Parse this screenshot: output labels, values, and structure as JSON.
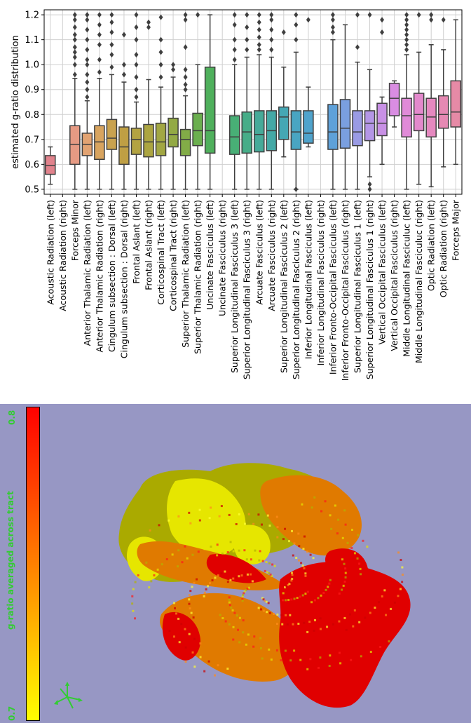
{
  "chart_data": {
    "type": "boxplot",
    "ylabel": "estimated g-ratio distribution",
    "xlabel": "",
    "ylim": [
      0.48,
      1.22
    ],
    "yticks": [
      0.5,
      0.6,
      0.7,
      0.8,
      0.9,
      1.0,
      1.1,
      1.2
    ],
    "grid": true,
    "categories": [
      {
        "label": "Acoustic Radiation (left)",
        "color": "#e1828c",
        "box": {
          "min": 0.52,
          "q1": 0.56,
          "median": 0.595,
          "q3": 0.635,
          "max": 0.67
        },
        "outliers": []
      },
      {
        "label": "Acoustic Radiation (right)",
        "color": "#e1828c",
        "box": null,
        "outliers": []
      },
      {
        "label": "Forceps Minor",
        "color": "#e69a83",
        "box": {
          "min": 0.5,
          "q1": 0.6,
          "median": 0.68,
          "q3": 0.755,
          "max": 0.945
        },
        "outliers": [
          0.96,
          1.0,
          1.03,
          1.05,
          1.07,
          1.1,
          1.12,
          1.15,
          1.18,
          1.2
        ]
      },
      {
        "label": "Anterior Thalamic Radiation (left)",
        "color": "#e2a372",
        "box": {
          "min": 0.5,
          "q1": 0.635,
          "median": 0.68,
          "q3": 0.725,
          "max": 0.855
        },
        "outliers": [
          0.87,
          0.9,
          0.93,
          0.96,
          1.0,
          1.02,
          1.06,
          1.1,
          1.14,
          1.18,
          1.2
        ]
      },
      {
        "label": "Anterior Thalamic Radiation (right)",
        "color": "#d8a45f",
        "box": {
          "min": 0.5,
          "q1": 0.62,
          "median": 0.69,
          "q3": 0.755,
          "max": 0.945
        },
        "outliers": [
          0.97,
          1.02,
          1.08,
          1.12,
          1.16,
          1.2
        ]
      },
      {
        "label": "Cingulum subsection : Dorsal (left)",
        "color": "#c9a24f",
        "box": {
          "min": 0.5,
          "q1": 0.66,
          "median": 0.705,
          "q3": 0.78,
          "max": 0.96
        },
        "outliers": [
          0.99,
          1.04,
          1.08,
          1.13,
          1.17,
          1.2
        ]
      },
      {
        "label": "Cingulum subsection : Dorsal (right)",
        "color": "#bf9f44",
        "box": {
          "min": 0.5,
          "q1": 0.6,
          "median": 0.67,
          "q3": 0.75,
          "max": 0.93
        },
        "outliers": [
          0.96,
          1.0,
          1.12
        ]
      },
      {
        "label": "Frontal Aslant (left)",
        "color": "#b3a341",
        "box": {
          "min": 0.5,
          "q1": 0.64,
          "median": 0.7,
          "q3": 0.745,
          "max": 0.85
        },
        "outliers": [
          0.87,
          0.9,
          0.95,
          1.0,
          1.04,
          1.1,
          1.15,
          1.2
        ]
      },
      {
        "label": "Frontal Aslant (right)",
        "color": "#aca541",
        "box": {
          "min": 0.5,
          "q1": 0.63,
          "median": 0.69,
          "q3": 0.76,
          "max": 0.94
        },
        "outliers": [
          1.15,
          1.17
        ]
      },
      {
        "label": "Corticospinal Tract (left)",
        "color": "#a2a743",
        "box": {
          "min": 0.5,
          "q1": 0.635,
          "median": 0.69,
          "q3": 0.765,
          "max": 0.91
        },
        "outliers": [
          0.95,
          1.0,
          1.05,
          1.1,
          1.19
        ]
      },
      {
        "label": "Corticospinal Tract (right)",
        "color": "#93aa44",
        "box": {
          "min": 0.5,
          "q1": 0.67,
          "median": 0.72,
          "q3": 0.785,
          "max": 0.95
        },
        "outliers": [
          0.98,
          1.0
        ]
      },
      {
        "label": "Superior Thalamic Radiation (left)",
        "color": "#82ac47",
        "box": {
          "min": 0.5,
          "q1": 0.635,
          "median": 0.7,
          "q3": 0.74,
          "max": 0.875
        },
        "outliers": [
          0.9,
          0.92,
          0.95,
          0.98,
          1.07,
          1.18,
          1.2
        ]
      },
      {
        "label": "Superior Thalamic Radiation (right)",
        "color": "#6baf4f",
        "box": {
          "min": 0.5,
          "q1": 0.675,
          "median": 0.735,
          "q3": 0.805,
          "max": 1.0
        },
        "outliers": [
          1.2
        ]
      },
      {
        "label": "Uncinate Fasciculus (left)",
        "color": "#4fb05c",
        "box": {
          "min": 0.5,
          "q1": 0.645,
          "median": 0.735,
          "q3": 0.99,
          "max": 1.2
        },
        "outliers": []
      },
      {
        "label": "Uncinate Fasciculus (right)",
        "color": "#4fb05c",
        "box": null,
        "outliers": []
      },
      {
        "label": "Superior Longitudinal Fasciculus 3 (left)",
        "color": "#48af76",
        "box": {
          "min": 0.5,
          "q1": 0.64,
          "median": 0.71,
          "q3": 0.795,
          "max": 1.0
        },
        "outliers": [
          1.02,
          1.06,
          1.1,
          1.16,
          1.2
        ]
      },
      {
        "label": "Superior Longitudinal Fasciculus 3 (right)",
        "color": "#46ad88",
        "box": {
          "min": 0.5,
          "q1": 0.645,
          "median": 0.73,
          "q3": 0.81,
          "max": 1.03
        },
        "outliers": [
          1.06,
          1.1,
          1.15,
          1.2
        ]
      },
      {
        "label": "Arcuate Fasciculus (left)",
        "color": "#46aa99",
        "box": {
          "min": 0.5,
          "q1": 0.65,
          "median": 0.72,
          "q3": 0.815,
          "max": 1.04
        },
        "outliers": [
          1.06,
          1.08,
          1.11,
          1.14,
          1.17,
          1.2
        ]
      },
      {
        "label": "Arcuate Fasciculus (right)",
        "color": "#44a9a6",
        "box": {
          "min": 0.5,
          "q1": 0.655,
          "median": 0.735,
          "q3": 0.815,
          "max": 1.03
        },
        "outliers": [
          1.06,
          1.1,
          1.14,
          1.18,
          1.2
        ]
      },
      {
        "label": "Superior Longitudinal Fasciculus 2 (left)",
        "color": "#45a7b4",
        "box": {
          "min": 0.63,
          "q1": 0.7,
          "median": 0.79,
          "q3": 0.83,
          "max": 0.99
        },
        "outliers": [
          1.13
        ]
      },
      {
        "label": "Superior Longitudinal Fasciculus 2 (right)",
        "color": "#49a5c2",
        "box": {
          "min": 0.5,
          "q1": 0.66,
          "median": 0.73,
          "q3": 0.815,
          "max": 1.05
        },
        "outliers": [
          0.5,
          1.1,
          1.16,
          1.2
        ]
      },
      {
        "label": "Inferior Longitudinal Fasciculus (left)",
        "color": "#4fa3cc",
        "box": {
          "min": 0.67,
          "q1": 0.685,
          "median": 0.725,
          "q3": 0.815,
          "max": 0.91
        },
        "outliers": [
          1.18
        ]
      },
      {
        "label": "Inferior Longitudinal Fasciculus (right)",
        "color": "#4fa3cc",
        "box": null,
        "outliers": []
      },
      {
        "label": "Inferior Fronto-Occipital Fasciculus (left)",
        "color": "#5ea1d9",
        "box": {
          "min": 0.5,
          "q1": 0.66,
          "median": 0.73,
          "q3": 0.84,
          "max": 1.1
        },
        "outliers": [
          1.13,
          1.15,
          1.18,
          1.2
        ]
      },
      {
        "label": "Inferior Fronto-Occipital Fasciculus (right)",
        "color": "#7a9fdf",
        "box": {
          "min": 0.5,
          "q1": 0.665,
          "median": 0.745,
          "q3": 0.86,
          "max": 1.16
        },
        "outliers": []
      },
      {
        "label": "Superior Longitudinal Fasciculus 1 (left)",
        "color": "#9a9be4",
        "box": {
          "min": 0.5,
          "q1": 0.675,
          "median": 0.73,
          "q3": 0.815,
          "max": 1.01
        },
        "outliers": [
          1.07,
          1.2
        ]
      },
      {
        "label": "Superior Longitudinal Fasciculus 1 (right)",
        "color": "#b496e6",
        "box": {
          "min": 0.55,
          "q1": 0.695,
          "median": 0.765,
          "q3": 0.815,
          "max": 0.98
        },
        "outliers": [
          0.5,
          0.52,
          1.2
        ]
      },
      {
        "label": "Vertical Occipital Fasciculus (left)",
        "color": "#c890e5",
        "box": {
          "min": 0.6,
          "q1": 0.715,
          "median": 0.765,
          "q3": 0.845,
          "max": 0.87
        },
        "outliers": [
          1.13,
          1.18
        ]
      },
      {
        "label": "Vertical Occipital Fasciculus (right)",
        "color": "#d98de2",
        "box": {
          "min": 0.75,
          "q1": 0.795,
          "median": 0.865,
          "q3": 0.925,
          "max": 0.935
        },
        "outliers": []
      },
      {
        "label": "Middle Longitudinal Fasciculuc (left)",
        "color": "#e08ad8",
        "box": {
          "min": 0.5,
          "q1": 0.71,
          "median": 0.795,
          "q3": 0.865,
          "max": 1.04
        },
        "outliers": [
          1.06,
          1.08,
          1.1,
          1.12,
          1.14,
          1.16,
          1.18,
          1.2
        ]
      },
      {
        "label": "Middle Longitudinal Fasciculuc (right)",
        "color": "#e389cc",
        "box": {
          "min": 0.52,
          "q1": 0.735,
          "median": 0.8,
          "q3": 0.885,
          "max": 1.05
        },
        "outliers": [
          1.2
        ]
      },
      {
        "label": "Optic Radiation (left)",
        "color": "#e588bf",
        "box": {
          "min": 0.51,
          "q1": 0.71,
          "median": 0.79,
          "q3": 0.865,
          "max": 1.08
        },
        "outliers": [
          1.18,
          1.2
        ]
      },
      {
        "label": "Optic Radiation (right)",
        "color": "#e689b3",
        "box": {
          "min": 0.59,
          "q1": 0.745,
          "median": 0.8,
          "q3": 0.875,
          "max": 1.06
        },
        "outliers": [
          1.18
        ]
      },
      {
        "label": "Forceps Major",
        "color": "#e68aa6",
        "box": {
          "min": 0.6,
          "q1": 0.75,
          "median": 0.81,
          "q3": 0.935,
          "max": 1.18
        },
        "outliers": []
      }
    ]
  },
  "render": {
    "background": "#9797c4",
    "colorbar_title": "g-ratio averaged across tract",
    "colorbar_max": "0.8",
    "colorbar_min": "0.7",
    "colormap": [
      "#ffff00",
      "#ff8000",
      "#ff0000"
    ],
    "label_color": "#33cc33",
    "tracts": [
      {
        "name": "yellow-frontal",
        "color": "#e6e600",
        "value": 0.7
      },
      {
        "name": "olive-superior",
        "color": "#aaaa00",
        "value": 0.72
      },
      {
        "name": "orange-arcuate",
        "color": "#e07a00",
        "value": 0.75
      },
      {
        "name": "red-occipital",
        "color": "#e00000",
        "value": 0.8
      }
    ]
  }
}
